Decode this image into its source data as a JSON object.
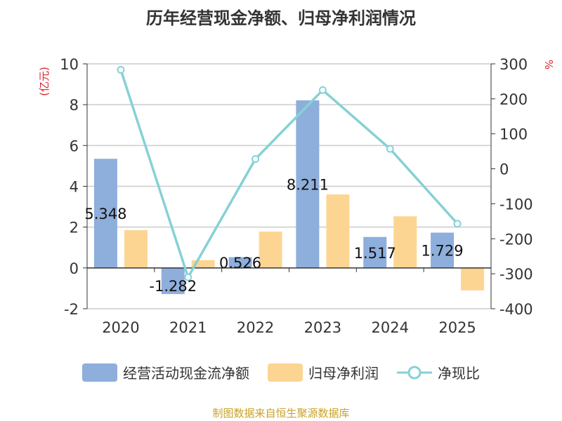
{
  "colors": {
    "bar_cash": "#8eaedc",
    "bar_profit": "#fdd592",
    "line_ratio": "#86d1d6",
    "unit_label": "#d9232b",
    "source": "#c9a227",
    "axis_text": "#333333",
    "grid": "#cccccc"
  },
  "chart_data": {
    "type": "bar",
    "title": "历年经营现金净额、归母净利润情况",
    "categories": [
      "2020",
      "2021",
      "2022",
      "2023",
      "2024",
      "2025"
    ],
    "series": [
      {
        "name": "经营活动现金流净额",
        "type": "bar",
        "axis": "left",
        "values": [
          5.348,
          -1.282,
          0.526,
          8.211,
          1.517,
          1.729
        ],
        "labels": [
          "5.348",
          "-1.282",
          "0.526",
          "8.211",
          "1.517",
          "1.729"
        ]
      },
      {
        "name": "归母净利润",
        "type": "bar",
        "axis": "left",
        "values": [
          1.85,
          0.38,
          1.78,
          3.6,
          2.53,
          -1.1
        ]
      },
      {
        "name": "净现比",
        "type": "line",
        "axis": "right",
        "values": [
          283,
          -310,
          28,
          225,
          57,
          -157
        ]
      }
    ],
    "y_left": {
      "label": "(亿元)",
      "min": -2,
      "max": 10,
      "ticks": [
        -2,
        0,
        2,
        4,
        6,
        8,
        10
      ]
    },
    "y_right": {
      "label": "%",
      "min": -400,
      "max": 300,
      "ticks": [
        -400,
        -300,
        -200,
        -100,
        0,
        100,
        200,
        300
      ]
    },
    "grid": true,
    "legend_position": "bottom"
  },
  "source_note": "制图数据来自恒生聚源数据库"
}
